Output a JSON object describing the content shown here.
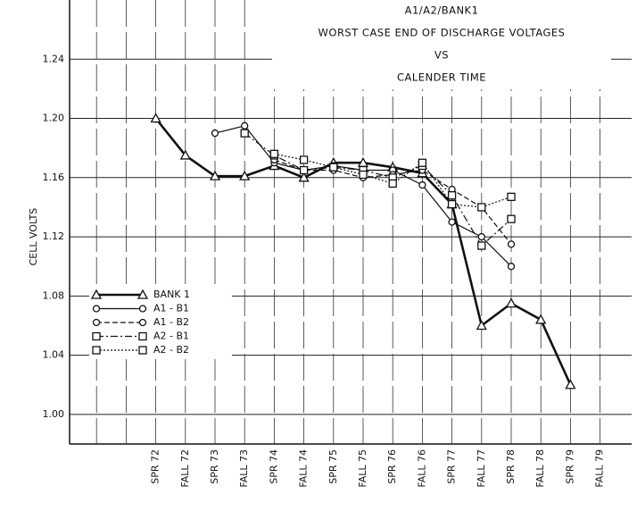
{
  "chart_data": {
    "type": "line",
    "title": [
      "A1/A2/BANK1",
      "WORST CASE END OF DISCHARGE VOLTAGES",
      "VS",
      "CALENDER TIME"
    ],
    "ylabel": "CELL VOLTS",
    "categories": [
      null,
      null,
      null,
      "SPR 72",
      "FALL 72",
      "SPR 73",
      "FALL 73",
      "SPR 74",
      "FALL 74",
      "SPR 75",
      "FALL 75",
      "SPR 76",
      "FALL 76",
      "SPR 77",
      "FALL 77",
      "SPR 78",
      "FALL 78",
      "SPR 79",
      "FALL 79"
    ],
    "ylim": [
      0.98,
      1.28
    ],
    "yticks": [
      {
        "value": 1.0,
        "label": "1.00"
      },
      1.04,
      1.08,
      1.12,
      1.16,
      {
        "value": 1.2,
        "label": "1.20"
      },
      1.24
    ],
    "grid": true,
    "legend": "lower-left",
    "series": [
      {
        "name": "BANK 1",
        "color": "#111",
        "width": 2.6,
        "dash": "",
        "marker": "triangle",
        "values": [
          null,
          null,
          null,
          1.2,
          1.175,
          1.161,
          1.161,
          1.168,
          1.16,
          1.17,
          1.17,
          1.167,
          1.163,
          1.142,
          1.06,
          1.075,
          1.064,
          1.02,
          null
        ]
      },
      {
        "name": "A1 - B1",
        "color": "#111",
        "width": 1.2,
        "dash": "",
        "marker": "circle",
        "values": [
          null,
          null,
          null,
          null,
          null,
          1.19,
          1.195,
          1.17,
          1.165,
          1.168,
          1.165,
          1.165,
          1.155,
          1.13,
          1.12,
          1.1,
          null,
          null,
          null
        ]
      },
      {
        "name": "A1 - B2",
        "color": "#111",
        "width": 1.2,
        "dash": "6 3",
        "marker": "circle",
        "values": [
          null,
          null,
          null,
          null,
          null,
          null,
          null,
          1.172,
          1.165,
          1.165,
          1.16,
          1.162,
          1.165,
          1.152,
          1.14,
          1.115,
          null,
          null,
          null
        ]
      },
      {
        "name": "A2 - B1",
        "color": "#111",
        "width": 1.2,
        "dash": "8 3 2 3",
        "marker": "square",
        "values": [
          null,
          null,
          null,
          null,
          null,
          null,
          1.19,
          1.175,
          1.165,
          1.167,
          1.165,
          1.16,
          1.168,
          1.148,
          1.114,
          1.132,
          null,
          null,
          null
        ]
      },
      {
        "name": "A2 - B2",
        "color": "#111",
        "width": 1.2,
        "dash": "2 2",
        "marker": "square",
        "values": [
          null,
          null,
          null,
          null,
          null,
          null,
          null,
          1.176,
          1.172,
          1.167,
          1.162,
          1.156,
          1.17,
          1.142,
          1.14,
          1.147,
          null,
          null,
          null
        ]
      }
    ]
  }
}
